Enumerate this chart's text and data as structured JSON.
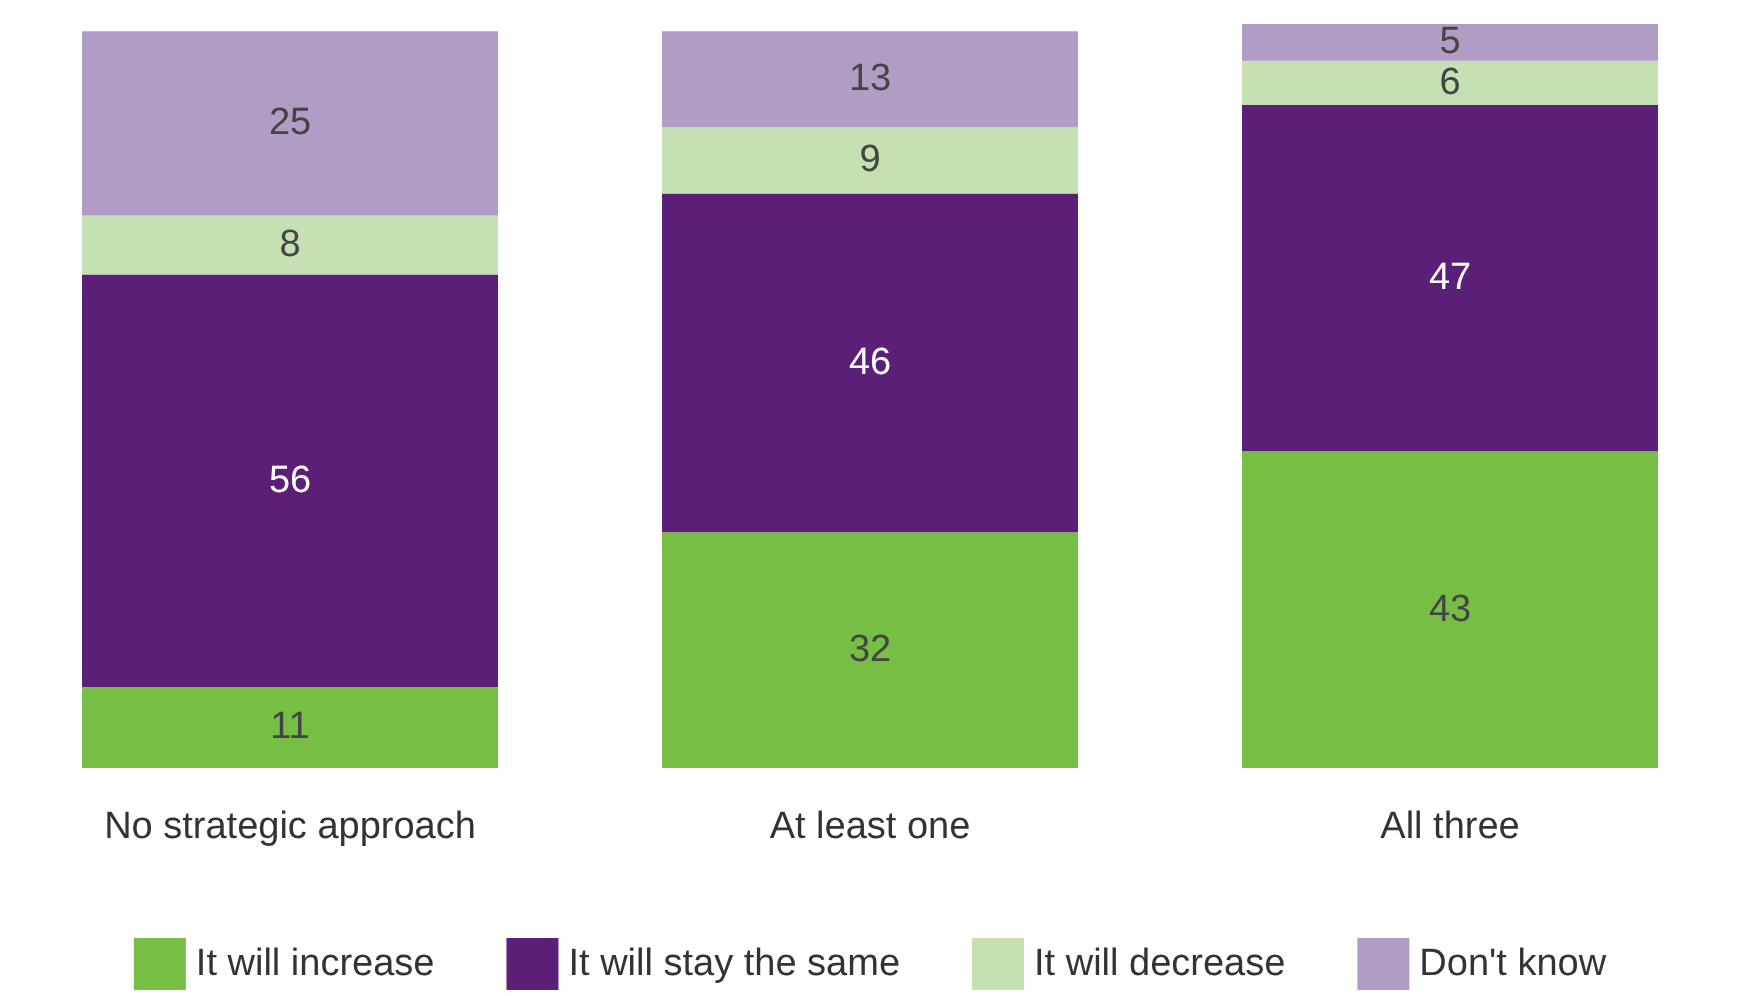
{
  "chart_data": {
    "type": "bar",
    "stacked": true,
    "data_labels": true,
    "legend": "bottom",
    "categories": [
      "No strategic approach",
      "At least one",
      "All three"
    ],
    "series": [
      {
        "name": "It will increase",
        "color": "#76bf44",
        "values": [
          11,
          32,
          43
        ]
      },
      {
        "name": "It will stay the same",
        "color": "#5c1f78",
        "values": [
          56,
          46,
          47
        ]
      },
      {
        "name": "It will decrease",
        "color": "#c5e0b3",
        "values": [
          8,
          9,
          6
        ]
      },
      {
        "name": "Don't know",
        "color": "#b09cc5",
        "values": [
          25,
          13,
          5
        ]
      }
    ]
  }
}
